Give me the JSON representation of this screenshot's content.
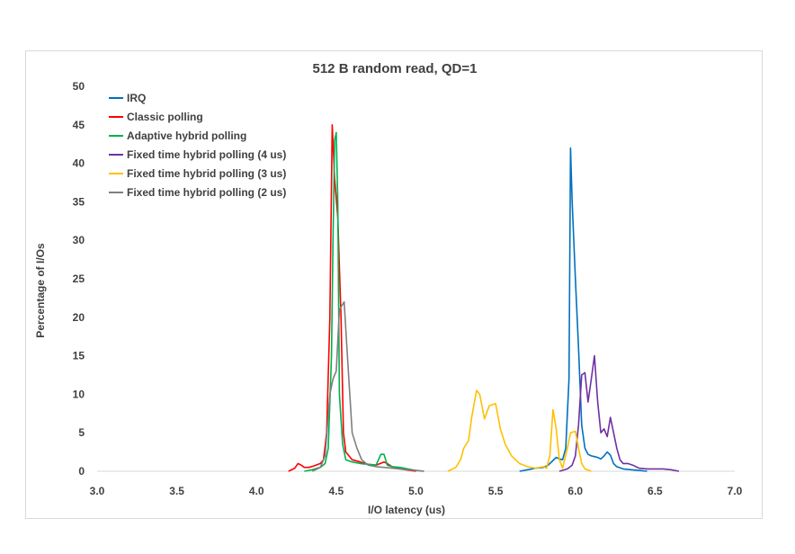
{
  "chart_data": {
    "type": "line",
    "title": "512 B random read, QD=1",
    "xlabel": "I/O latency (us)",
    "ylabel": "Percentage of I/Os",
    "xlim": [
      3.0,
      7.0
    ],
    "ylim": [
      0,
      50
    ],
    "xticks": [
      "3.0",
      "3.5",
      "4.0",
      "4.5",
      "5.0",
      "5.5",
      "6.0",
      "6.5",
      "7.0"
    ],
    "yticks": [
      "0",
      "5",
      "10",
      "15",
      "20",
      "25",
      "30",
      "35",
      "40",
      "45",
      "50"
    ],
    "grid": false,
    "legend_position": "top-left",
    "series": [
      {
        "name": "IRQ",
        "color": "#0070c0",
        "points": [
          [
            5.65,
            0
          ],
          [
            5.7,
            0.2
          ],
          [
            5.75,
            0.4
          ],
          [
            5.8,
            0.5
          ],
          [
            5.83,
            0.8
          ],
          [
            5.86,
            1.4
          ],
          [
            5.88,
            1.8
          ],
          [
            5.9,
            1.6
          ],
          [
            5.92,
            1.5
          ],
          [
            5.94,
            3
          ],
          [
            5.96,
            12
          ],
          [
            5.97,
            42
          ],
          [
            5.98,
            35
          ],
          [
            6.0,
            25
          ],
          [
            6.02,
            16
          ],
          [
            6.04,
            6
          ],
          [
            6.06,
            3
          ],
          [
            6.08,
            2.2
          ],
          [
            6.1,
            2
          ],
          [
            6.12,
            1.9
          ],
          [
            6.14,
            1.8
          ],
          [
            6.16,
            1.6
          ],
          [
            6.18,
            2
          ],
          [
            6.2,
            2.5
          ],
          [
            6.22,
            2.1
          ],
          [
            6.24,
            1
          ],
          [
            6.26,
            0.6
          ],
          [
            6.3,
            0.3
          ],
          [
            6.35,
            0.2
          ],
          [
            6.4,
            0.1
          ],
          [
            6.45,
            0
          ]
        ]
      },
      {
        "name": "Classic polling",
        "color": "#ff0000",
        "points": [
          [
            4.2,
            0
          ],
          [
            4.24,
            0.4
          ],
          [
            4.26,
            1
          ],
          [
            4.28,
            0.8
          ],
          [
            4.3,
            0.5
          ],
          [
            4.33,
            0.5
          ],
          [
            4.36,
            0.7
          ],
          [
            4.4,
            1
          ],
          [
            4.42,
            1.5
          ],
          [
            4.44,
            5
          ],
          [
            4.46,
            20
          ],
          [
            4.475,
            45
          ],
          [
            4.49,
            38
          ],
          [
            4.51,
            33
          ],
          [
            4.53,
            20
          ],
          [
            4.545,
            5
          ],
          [
            4.56,
            2.5
          ],
          [
            4.6,
            1.5
          ],
          [
            4.65,
            1.2
          ],
          [
            4.7,
            0.9
          ],
          [
            4.75,
            0.8
          ],
          [
            4.8,
            1.2
          ],
          [
            4.82,
            1
          ],
          [
            4.85,
            0.6
          ],
          [
            4.9,
            0.3
          ],
          [
            5.0,
            0
          ]
        ]
      },
      {
        "name": "Adaptive hybrid polling",
        "color": "#00b050",
        "points": [
          [
            4.3,
            0
          ],
          [
            4.35,
            0.2
          ],
          [
            4.4,
            0.5
          ],
          [
            4.43,
            1
          ],
          [
            4.45,
            3
          ],
          [
            4.47,
            15
          ],
          [
            4.48,
            30
          ],
          [
            4.49,
            43
          ],
          [
            4.5,
            44
          ],
          [
            4.51,
            35
          ],
          [
            4.52,
            10
          ],
          [
            4.54,
            3.5
          ],
          [
            4.56,
            1.5
          ],
          [
            4.6,
            1.2
          ],
          [
            4.65,
            1
          ],
          [
            4.7,
            0.9
          ],
          [
            4.75,
            0.8
          ],
          [
            4.78,
            2.2
          ],
          [
            4.8,
            2.2
          ],
          [
            4.82,
            0.8
          ],
          [
            4.85,
            0.6
          ],
          [
            4.9,
            0.5
          ],
          [
            4.95,
            0.3
          ],
          [
            5.0,
            0.1
          ],
          [
            5.05,
            0
          ]
        ]
      },
      {
        "name": "Fixed time hybrid polling (4 us)",
        "color": "#7030a0",
        "points": [
          [
            5.9,
            0
          ],
          [
            5.95,
            0.3
          ],
          [
            5.98,
            0.8
          ],
          [
            6.0,
            2
          ],
          [
            6.02,
            6
          ],
          [
            6.04,
            12.5
          ],
          [
            6.06,
            12.8
          ],
          [
            6.08,
            9
          ],
          [
            6.1,
            12
          ],
          [
            6.12,
            15
          ],
          [
            6.14,
            9
          ],
          [
            6.16,
            5
          ],
          [
            6.18,
            5.5
          ],
          [
            6.2,
            4.5
          ],
          [
            6.22,
            7
          ],
          [
            6.24,
            5
          ],
          [
            6.26,
            3
          ],
          [
            6.28,
            1.5
          ],
          [
            6.3,
            1
          ],
          [
            6.33,
            1
          ],
          [
            6.36,
            0.8
          ],
          [
            6.4,
            0.4
          ],
          [
            6.45,
            0.3
          ],
          [
            6.5,
            0.3
          ],
          [
            6.55,
            0.3
          ],
          [
            6.6,
            0.2
          ],
          [
            6.65,
            0
          ]
        ]
      },
      {
        "name": "Fixed time hybrid polling (3 us)",
        "color": "#ffc000",
        "points": [
          [
            5.2,
            0
          ],
          [
            5.25,
            0.5
          ],
          [
            5.28,
            1.5
          ],
          [
            5.3,
            3
          ],
          [
            5.33,
            4
          ],
          [
            5.35,
            7
          ],
          [
            5.38,
            10.5
          ],
          [
            5.4,
            10
          ],
          [
            5.43,
            6.8
          ],
          [
            5.46,
            8.5
          ],
          [
            5.5,
            8.8
          ],
          [
            5.53,
            5.5
          ],
          [
            5.56,
            3.5
          ],
          [
            5.6,
            2
          ],
          [
            5.65,
            1
          ],
          [
            5.7,
            0.6
          ],
          [
            5.75,
            0.4
          ],
          [
            5.8,
            0.6
          ],
          [
            5.82,
            0.4
          ],
          [
            5.84,
            2
          ],
          [
            5.86,
            8
          ],
          [
            5.88,
            5.5
          ],
          [
            5.9,
            1.5
          ],
          [
            5.92,
            0.4
          ],
          [
            5.95,
            3
          ],
          [
            5.97,
            5
          ],
          [
            6.0,
            5.2
          ],
          [
            6.02,
            3
          ],
          [
            6.04,
            1
          ],
          [
            6.06,
            0.3
          ],
          [
            6.1,
            0
          ]
        ]
      },
      {
        "name": "Fixed time hybrid polling (2 us)",
        "color": "#7f7f7f",
        "points": [
          [
            4.35,
            0
          ],
          [
            4.4,
            0.5
          ],
          [
            4.43,
            2
          ],
          [
            4.46,
            10
          ],
          [
            4.48,
            12
          ],
          [
            4.5,
            13
          ],
          [
            4.52,
            21
          ],
          [
            4.55,
            22
          ],
          [
            4.57,
            15
          ],
          [
            4.6,
            5
          ],
          [
            4.63,
            3
          ],
          [
            4.66,
            1.5
          ],
          [
            4.7,
            0.8
          ],
          [
            4.75,
            0.6
          ],
          [
            4.8,
            0.5
          ],
          [
            4.85,
            0.4
          ],
          [
            4.9,
            0.3
          ],
          [
            4.95,
            0.2
          ],
          [
            5.0,
            0.1
          ],
          [
            5.05,
            0
          ]
        ]
      }
    ]
  }
}
